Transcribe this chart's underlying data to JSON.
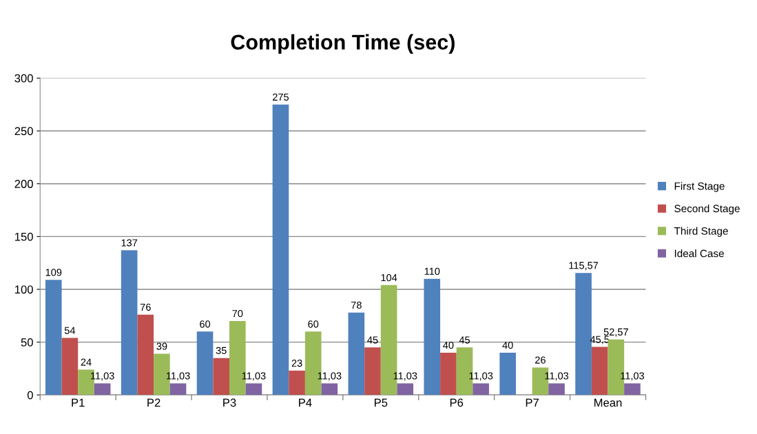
{
  "chart_data": {
    "type": "bar",
    "title": "Completion Time (sec)",
    "categories": [
      "P1",
      "P2",
      "P3",
      "P4",
      "P5",
      "P6",
      "P7",
      "Mean"
    ],
    "series": [
      {
        "name": "First Stage",
        "color": "#4f81bd",
        "values": [
          109,
          137,
          60,
          275,
          78,
          110,
          40,
          115.57
        ],
        "value_labels": [
          "109",
          "137",
          "60",
          "275",
          "78",
          "110",
          "40",
          "115,57"
        ]
      },
      {
        "name": "Second Stage",
        "color": "#c0504d",
        "values": [
          54,
          76,
          35,
          23,
          45,
          40,
          null,
          45.5
        ],
        "value_labels": [
          "54",
          "76",
          "35",
          "23",
          "45",
          "40",
          null,
          "45,5"
        ]
      },
      {
        "name": "Third Stage",
        "color": "#9bbb59",
        "values": [
          24,
          39,
          70,
          60,
          104,
          45,
          26,
          52.57
        ],
        "value_labels": [
          "24",
          "39",
          "70",
          "60",
          "104",
          "45",
          "26",
          "52,57"
        ]
      },
      {
        "name": "Ideal Case",
        "color": "#8064a2",
        "values": [
          11.03,
          11.03,
          11.03,
          11.03,
          11.03,
          11.03,
          11.03,
          11.03
        ],
        "value_labels": [
          "11,03",
          "11,03",
          "11,03",
          "11,03",
          "11,03",
          "11,03",
          "11,03",
          "11,03"
        ]
      }
    ],
    "ylim": [
      0,
      300
    ],
    "yticks": [
      0,
      50,
      100,
      150,
      200,
      250,
      300
    ],
    "grid": "y",
    "legend": "right"
  }
}
